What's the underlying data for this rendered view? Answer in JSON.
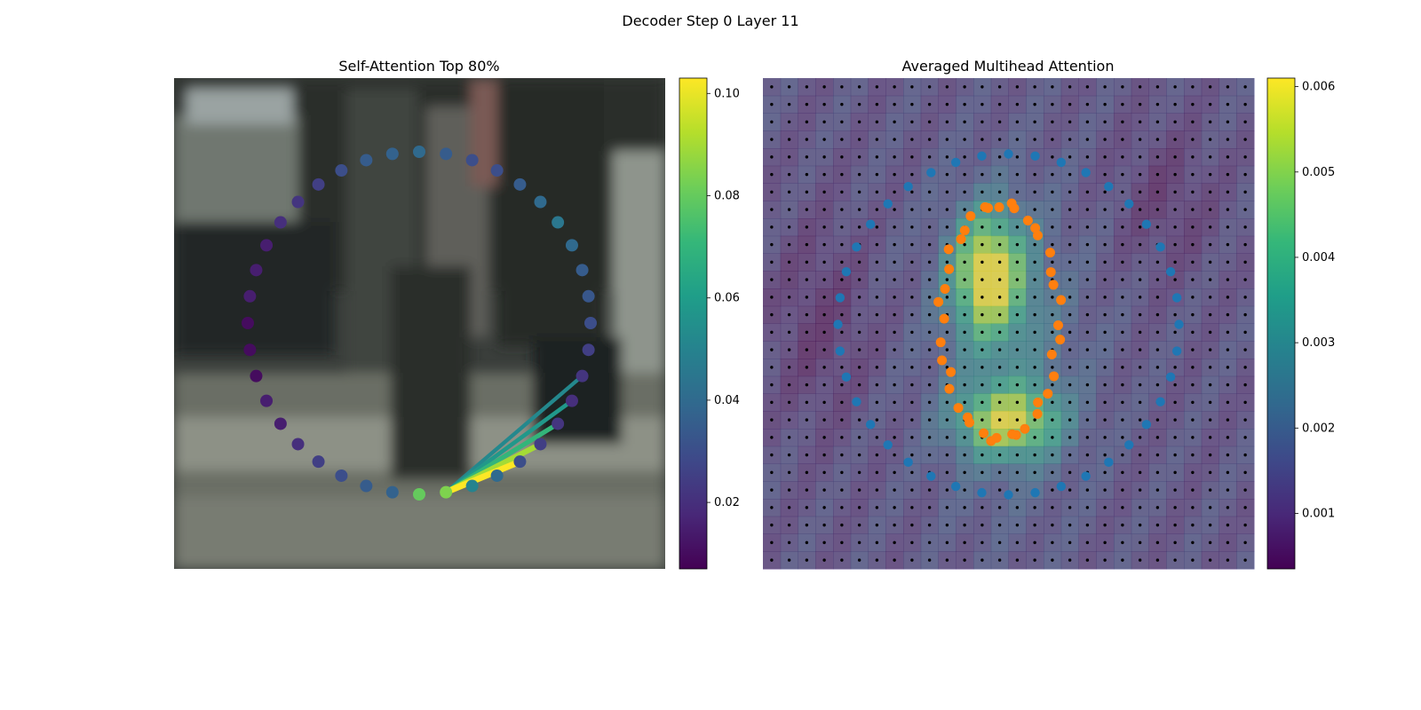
{
  "figure_title": "Decoder Step 0 Layer 11",
  "colormap": [
    "#440154",
    "#482878",
    "#3e4989",
    "#31688e",
    "#26828e",
    "#1f9e89",
    "#35b779",
    "#6ece58",
    "#b5de2b",
    "#fde725"
  ],
  "chart_data": [
    {
      "type": "scatter",
      "title": "Self-Attention Top 80%",
      "background": "blurred street photo",
      "points": {
        "shape": "circle (40 points)",
        "center": [
          0,
          0
        ],
        "radius": 1,
        "attention_values": [
          0.08,
          0.084,
          0.05,
          0.04,
          0.03,
          0.025,
          0.022,
          0.02,
          0.022,
          0.025,
          0.03,
          0.033,
          0.035,
          0.04,
          0.045,
          0.04,
          0.035,
          0.03,
          0.03,
          0.035,
          0.04,
          0.037,
          0.035,
          0.03,
          0.025,
          0.022,
          0.02,
          0.015,
          0.015,
          0.015,
          0.01,
          0.01,
          0.01,
          0.015,
          0.015,
          0.02,
          0.025,
          0.03,
          0.035,
          0.037
        ]
      },
      "query_index": 1,
      "attention_lines": [
        {
          "to": 4,
          "weight": 0.103
        },
        {
          "to": 5,
          "weight": 0.09
        },
        {
          "to": 6,
          "weight": 0.07
        },
        {
          "to": 7,
          "weight": 0.058
        },
        {
          "to": 8,
          "weight": 0.052
        }
      ],
      "colorbar": {
        "min": 0.007,
        "max": 0.103,
        "ticks": [
          "0.02",
          "0.04",
          "0.06",
          "0.08",
          "0.10"
        ],
        "tick_values": [
          0.02,
          0.04,
          0.06,
          0.08,
          0.1
        ]
      }
    },
    {
      "type": "heatmap",
      "title": "Averaged Multihead Attention",
      "grid_size": [
        28,
        28
      ],
      "colorbar": {
        "min": 0.00035,
        "max": 0.0061,
        "ticks": [
          "0.001",
          "0.002",
          "0.003",
          "0.004",
          "0.005",
          "0.006"
        ],
        "tick_values": [
          0.001,
          0.002,
          0.003,
          0.004,
          0.005,
          0.006
        ]
      },
      "series": [
        {
          "color": "#1f77b4",
          "count": 40,
          "shape": "ring radius 0.69"
        },
        {
          "color": "#ff7f0e",
          "count": 40,
          "shape": "ellipse 0.19 × 0.48"
        }
      ]
    }
  ]
}
